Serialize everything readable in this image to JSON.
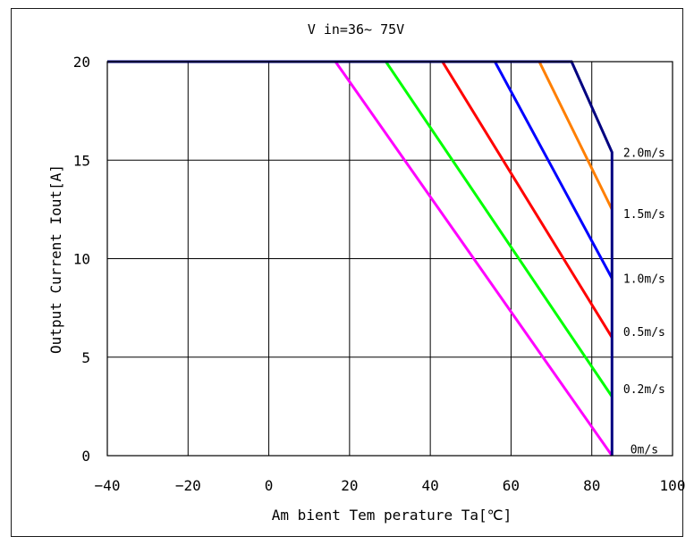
{
  "chart_data": {
    "type": "line",
    "title": "V in=36~ 75V",
    "xlabel": "Am bient Tem perature Ta[℃]",
    "ylabel": "Output Current Iout[A]",
    "xlim": [
      -40,
      100
    ],
    "ylim": [
      0,
      20
    ],
    "xticks": [
      -40,
      -20,
      0,
      20,
      40,
      60,
      80,
      100
    ],
    "xtick_labels": [
      "−40",
      "−20",
      "0",
      "20",
      "40",
      "60",
      "80",
      "100"
    ],
    "yticks": [
      0,
      5,
      10,
      15,
      20
    ],
    "ytick_labels": [
      "0",
      "5",
      "10",
      "15",
      "20"
    ],
    "grid": true,
    "series": [
      {
        "name": "0m/s",
        "color": "#ff00ff",
        "x": [
          -40,
          16.5,
          85
        ],
        "y": [
          20,
          20,
          0
        ]
      },
      {
        "name": "0.2m/s",
        "color": "#00ff00",
        "x": [
          -40,
          29,
          85
        ],
        "y": [
          20,
          20,
          3
        ]
      },
      {
        "name": "0.5m/s",
        "color": "#ff0000",
        "x": [
          -40,
          43,
          85
        ],
        "y": [
          20,
          20,
          6
        ]
      },
      {
        "name": "1.0m/s",
        "color": "#0000ff",
        "x": [
          -40,
          56,
          85
        ],
        "y": [
          20,
          20,
          9
        ]
      },
      {
        "name": "1.5m/s",
        "color": "#ff7f00",
        "x": [
          -40,
          67,
          85
        ],
        "y": [
          20,
          20,
          12.5
        ]
      },
      {
        "name": "2.0m/s",
        "color": "#000080",
        "x": [
          -40,
          75,
          85,
          85
        ],
        "y": [
          20,
          20,
          15.4,
          0
        ]
      }
    ],
    "annotations": [
      {
        "text": "2.0m/s",
        "x": 93,
        "y": 15.4
      },
      {
        "text": "1.5m/s",
        "x": 93,
        "y": 12.3
      },
      {
        "text": "1.0m/s",
        "x": 93,
        "y": 9.0
      },
      {
        "text": "0.5m/s",
        "x": 93,
        "y": 6.3
      },
      {
        "text": "0.2m/s",
        "x": 93,
        "y": 3.4
      },
      {
        "text": "0m/s",
        "x": 93,
        "y": 0.35
      }
    ]
  }
}
